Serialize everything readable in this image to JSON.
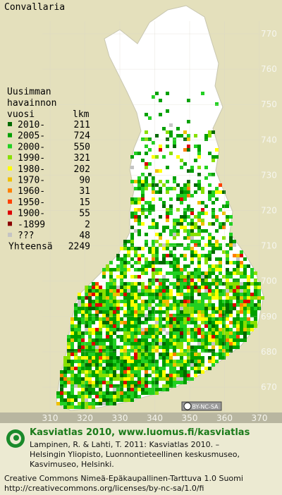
{
  "title": "Convallaria",
  "legend": {
    "heading": [
      "Uusimman",
      "havainnon",
      "vuosi"
    ],
    "count_heading": "lkm",
    "rows": [
      {
        "label": "2010-",
        "count": 211,
        "color": "#006a00"
      },
      {
        "label": "2005-",
        "count": 724,
        "color": "#00a000"
      },
      {
        "label": "2000-",
        "count": 550,
        "color": "#22d022"
      },
      {
        "label": "1990-",
        "count": 321,
        "color": "#88e000"
      },
      {
        "label": "1980-",
        "count": 202,
        "color": "#ffff00"
      },
      {
        "label": "1970-",
        "count": 90,
        "color": "#f0c000"
      },
      {
        "label": "1960-",
        "count": 31,
        "color": "#ff8000"
      },
      {
        "label": "1950-",
        "count": 15,
        "color": "#ff4000"
      },
      {
        "label": "1900-",
        "count": 55,
        "color": "#dd0000"
      },
      {
        "label": "-1899",
        "count": 2,
        "color": "#8a0000"
      },
      {
        "label": "???",
        "count": 48,
        "color": "#c4c4c4"
      }
    ],
    "total_label": "Yhteensä",
    "total": 2249
  },
  "grid": {
    "y_labels": [
      770,
      760,
      750,
      740,
      730,
      720,
      710,
      700,
      690,
      680,
      670
    ],
    "x_labels": [
      310,
      320,
      330,
      340,
      350,
      360,
      370
    ]
  },
  "license_badge": "BY-NC-SA",
  "footer": {
    "brand": "Kasviatlas 2010, www.luomus.fi/kasviatlas",
    "citation": [
      "Lampinen, R. & Lahti, T. 2011: Kasviatlas 2010. –",
      "Helsingin Yliopisto, Luonnontieteellinen keskusmuseo,",
      "Kasvimuseo, Helsinki."
    ],
    "license": [
      "Creative Commons Nimeä-Epäkaupallinen-Tarttuva 1.0 Suomi",
      "http://creativecommons.org/licenses/by-nc-sa/1.0/fi"
    ]
  }
}
